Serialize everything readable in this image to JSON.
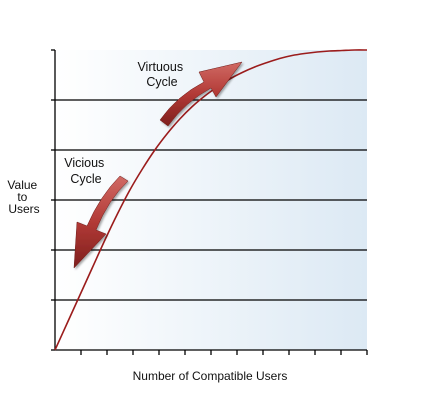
{
  "chart_data": {
    "type": "line",
    "title": "",
    "xlabel": "Number of Compatible Users",
    "ylabel": [
      "Value",
      "to",
      "Users"
    ],
    "xlim": [
      0,
      12.5
    ],
    "ylim": [
      0,
      6
    ],
    "x_ticks_count": 12,
    "y_ticks_count": 6,
    "grid": "horizontal",
    "series": [
      {
        "x": [
          0,
          0.5,
          1,
          1.5,
          2,
          2.5,
          3,
          3.5,
          4,
          4.5,
          5,
          5.5,
          6,
          6.5,
          7,
          7.5,
          8,
          8.5,
          9,
          9.5,
          10,
          10.5,
          11,
          11.5,
          12,
          12.5
        ],
        "y": [
          0,
          0.55,
          1.1,
          1.65,
          2.2,
          2.72,
          3.2,
          3.62,
          4.0,
          4.33,
          4.62,
          4.87,
          5.08,
          5.26,
          5.42,
          5.55,
          5.66,
          5.75,
          5.83,
          5.89,
          5.93,
          5.96,
          5.98,
          5.99,
          6.0,
          6.0
        ],
        "color": "#9b1c1c"
      }
    ],
    "annotations": [
      {
        "lines": [
          "Virtuous",
          "Cycle"
        ],
        "direction": "up"
      },
      {
        "lines": [
          "Vicious",
          "Cycle"
        ],
        "direction": "down"
      }
    ],
    "arrow_color": "#b23a36",
    "background_gradient": [
      "#ffffff",
      "#dce9f4"
    ]
  }
}
